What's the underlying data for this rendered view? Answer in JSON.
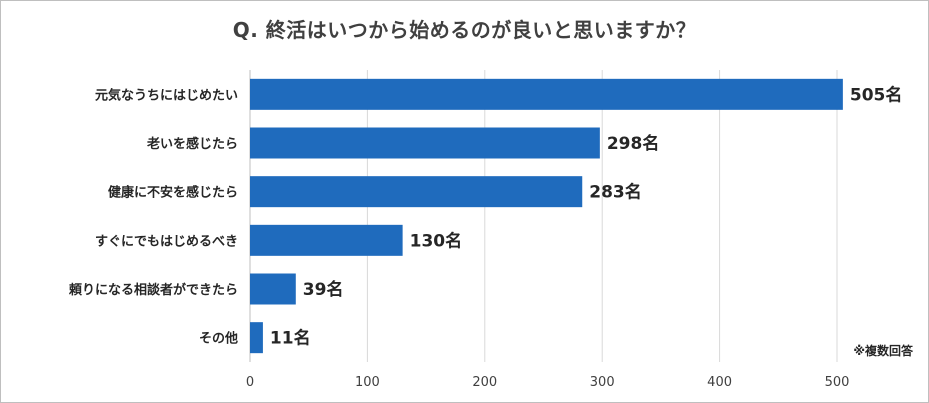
{
  "title": "Q. 終活はいつから始めるのが良いと思いますか？",
  "note": "※複数回答",
  "colors": {
    "bar": "#1f6bbd",
    "grid": "#d9d9d9",
    "axis": "#bfbfbf"
  },
  "chart_data": {
    "type": "bar",
    "orientation": "horizontal",
    "categories": [
      "元気なうちにはじめたい",
      "老いを感じたら",
      "健康に不安を感じたら",
      "すぐにでもはじめるべき",
      "頼りになる相談者ができたら",
      "その他"
    ],
    "values": [
      505,
      298,
      283,
      130,
      39,
      11
    ],
    "value_labels": [
      "505名",
      "298名",
      "283名",
      "130名",
      "39名",
      "11名"
    ],
    "xlim": [
      0,
      500
    ],
    "xticks": [
      0,
      100,
      200,
      300,
      400,
      500
    ],
    "grid": true
  }
}
